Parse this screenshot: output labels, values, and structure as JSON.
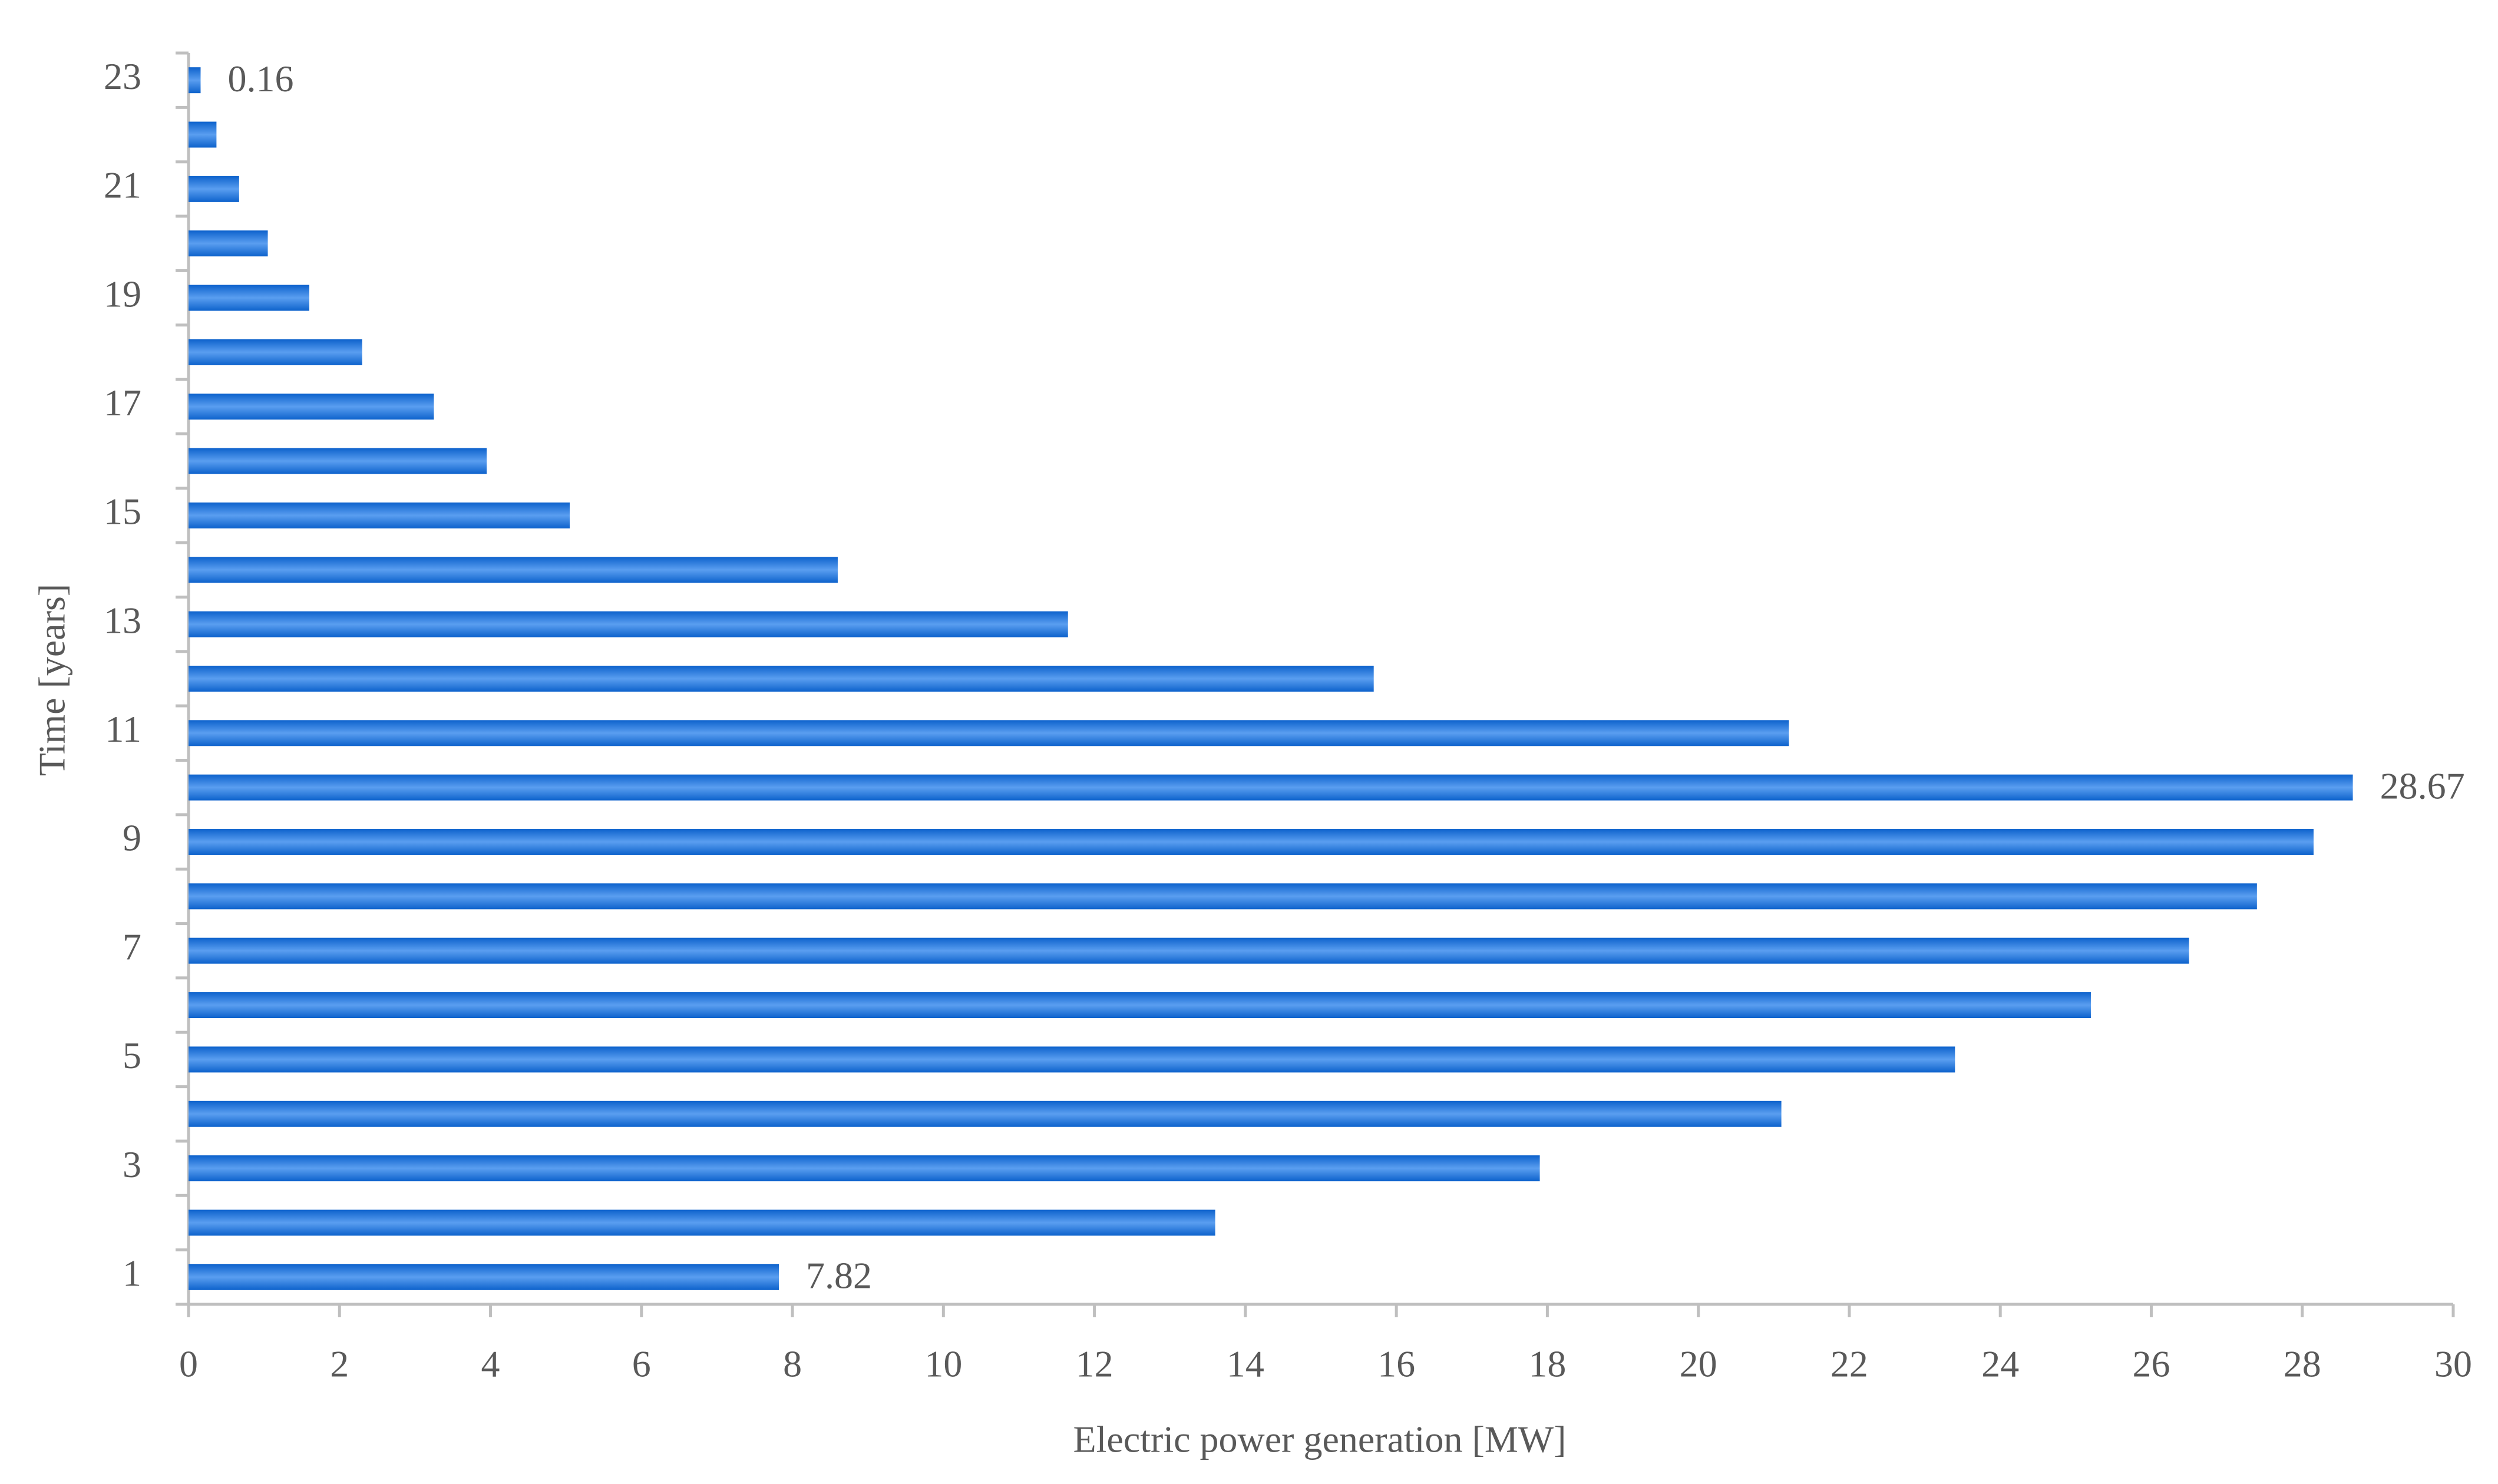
{
  "chart_data": {
    "type": "hbar",
    "xlabel": "Electric power generation [MW]",
    "ylabel": "Time [years]",
    "categories": [
      "1",
      null,
      "3",
      null,
      "5",
      null,
      "7",
      null,
      "9",
      null,
      "11",
      null,
      "13",
      null,
      "15",
      null,
      "17",
      null,
      "19",
      null,
      "21",
      null,
      "23"
    ],
    "values": [
      7.82,
      13.6,
      17.9,
      21.1,
      23.4,
      25.2,
      26.5,
      27.4,
      28.15,
      28.67,
      21.2,
      15.7,
      11.65,
      8.6,
      5.05,
      3.95,
      3.25,
      2.3,
      1.6,
      1.05,
      0.67,
      0.37,
      0.16
    ],
    "value_labels": [
      "7.82",
      null,
      null,
      null,
      null,
      null,
      null,
      null,
      null,
      "28.67",
      null,
      null,
      null,
      null,
      null,
      null,
      null,
      null,
      null,
      null,
      null,
      null,
      "0.16"
    ],
    "color": "#0d62cc",
    "xlim": [
      0,
      30
    ],
    "xticks": [
      0,
      2,
      4,
      6,
      8,
      10,
      12,
      14,
      16,
      18,
      20,
      22,
      24,
      26,
      28,
      30
    ],
    "grid": false
  }
}
